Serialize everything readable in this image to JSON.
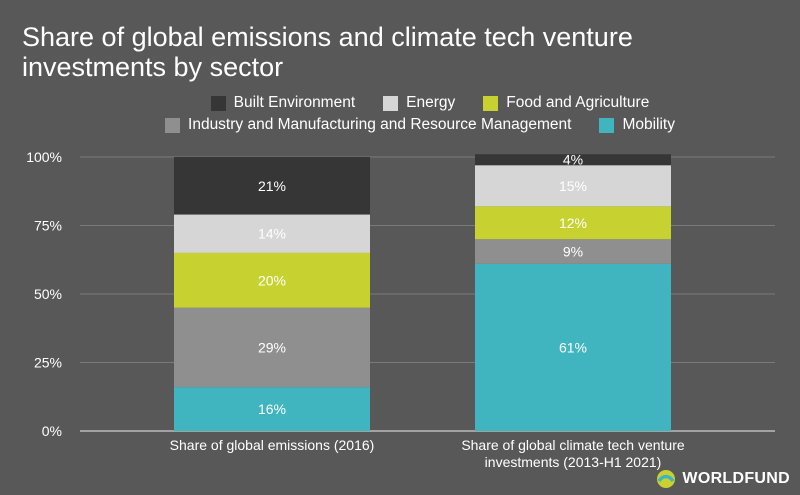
{
  "chart_data": {
    "type": "bar",
    "stacked": true,
    "title": "Share of global emissions and climate tech venture investments by sector",
    "categories": [
      [
        "Share of global emissions (2016)"
      ],
      [
        "Share of global climate tech venture",
        "investments (2013-H1 2021)"
      ]
    ],
    "series": [
      {
        "name": "Mobility",
        "color": "#40b5bf",
        "values": [
          16,
          61
        ]
      },
      {
        "name": "Industry and Manufacturing and Resource Management",
        "color": "#8f8f8f",
        "values": [
          29,
          9
        ]
      },
      {
        "name": "Food and Agriculture",
        "color": "#c7d231",
        "values": [
          20,
          12
        ]
      },
      {
        "name": "Energy",
        "color": "#d6d6d6",
        "values": [
          14,
          15
        ]
      },
      {
        "name": "Built Environment",
        "color": "#363636",
        "values": [
          21,
          4
        ]
      }
    ],
    "legend_order": [
      "Built Environment",
      "Energy",
      "Food and Agriculture",
      "Industry and Manufacturing and Resource Management",
      "Mobility"
    ],
    "ylim": [
      0,
      100
    ],
    "yticks": [
      "0%",
      "25%",
      "50%",
      "75%",
      "100%"
    ],
    "grid": true,
    "legend_position": "top"
  },
  "branding": {
    "logo_text": "WORLDFUND"
  }
}
